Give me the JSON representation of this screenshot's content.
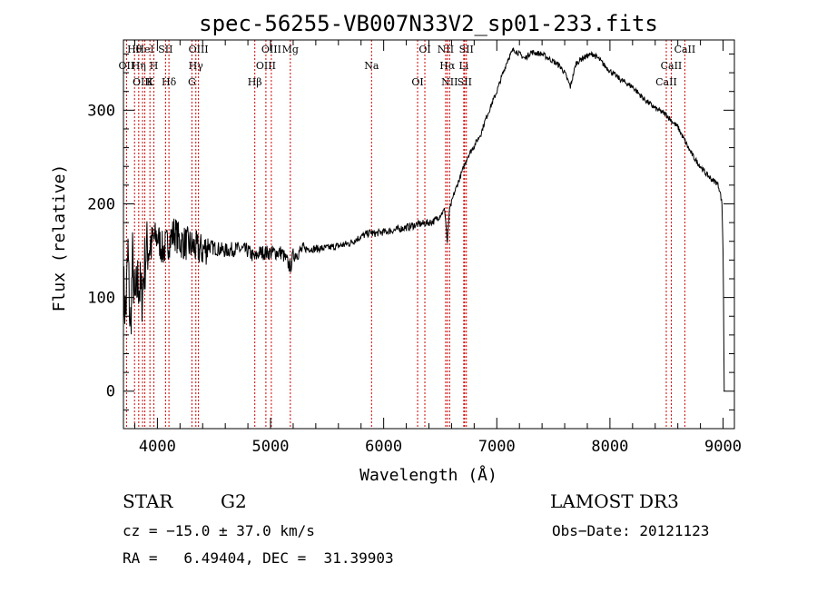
{
  "chart_data": {
    "type": "line",
    "title": "spec-56255-VB007N33V2_sp01-233.fits",
    "xlabel": "Wavelength (Å)",
    "ylabel": "Flux (relative)",
    "xlim": [
      3700,
      9100
    ],
    "ylim": [
      -40,
      375
    ],
    "xticks": [
      4000,
      5000,
      6000,
      7000,
      8000,
      9000
    ],
    "yticks": [
      0,
      100,
      200,
      300
    ],
    "grid": false,
    "series": [
      {
        "name": "flux",
        "x": [
          3700,
          3720,
          3740,
          3760,
          3780,
          3800,
          3830,
          3860,
          3900,
          3950,
          4000,
          4050,
          4100,
          4150,
          4200,
          4250,
          4300,
          4350,
          4400,
          4450,
          4500,
          4600,
          4700,
          4800,
          4861,
          4900,
          5000,
          5100,
          5175,
          5200,
          5300,
          5400,
          5500,
          5600,
          5700,
          5800,
          5893,
          5900,
          6000,
          6100,
          6200,
          6300,
          6400,
          6450,
          6500,
          6540,
          6563,
          6580,
          6620,
          6680,
          6740,
          6800,
          6860,
          6900,
          6950,
          7000,
          7050,
          7100,
          7150,
          7200,
          7250,
          7300,
          7400,
          7500,
          7550,
          7600,
          7650,
          7700,
          7750,
          7800,
          7850,
          7900,
          7950,
          8000,
          8100,
          8200,
          8300,
          8400,
          8500,
          8550,
          8600,
          8650,
          8700,
          8750,
          8800,
          8850,
          8900,
          8950,
          8970,
          8990,
          9000,
          9010
        ],
        "y": [
          110,
          80,
          150,
          60,
          140,
          90,
          120,
          100,
          150,
          160,
          165,
          150,
          160,
          170,
          160,
          158,
          155,
          152,
          150,
          155,
          153,
          150,
          152,
          150,
          142,
          148,
          148,
          148,
          132,
          145,
          152,
          152,
          153,
          155,
          158,
          165,
          170,
          168,
          170,
          172,
          175,
          178,
          180,
          182,
          188,
          194,
          158,
          192,
          210,
          230,
          250,
          262,
          275,
          290,
          305,
          320,
          338,
          355,
          365,
          360,
          355,
          362,
          360,
          352,
          348,
          340,
          325,
          350,
          355,
          358,
          360,
          355,
          348,
          342,
          332,
          325,
          312,
          302,
          295,
          288,
          282,
          270,
          258,
          248,
          240,
          232,
          226,
          222,
          215,
          200,
          150,
          0
        ]
      }
    ],
    "line_annotations": [
      {
        "label": "Hθ",
        "wavelength": 3798
      },
      {
        "label": "OII",
        "wavelength": 3727
      },
      {
        "label": "OIII",
        "wavelength": 3869
      },
      {
        "label": "HeI",
        "wavelength": 3889
      },
      {
        "label": "Hη",
        "wavelength": 3835
      },
      {
        "label": "K",
        "wavelength": 3934
      },
      {
        "label": "SII",
        "wavelength": 4072
      },
      {
        "label": "H",
        "wavelength": 3969
      },
      {
        "label": "Hδ",
        "wavelength": 4102
      },
      {
        "label": "OIII",
        "wavelength": 4363
      },
      {
        "label": "Hγ",
        "wavelength": 4340
      },
      {
        "label": "G",
        "wavelength": 4305
      },
      {
        "label": "OIII",
        "wavelength": 5007
      },
      {
        "label": "OIII",
        "wavelength": 4959
      },
      {
        "label": "Hβ",
        "wavelength": 4861
      },
      {
        "label": "Mg",
        "wavelength": 5175
      },
      {
        "label": "Na",
        "wavelength": 5893
      },
      {
        "label": "OI",
        "wavelength": 6300
      },
      {
        "label": "OI",
        "wavelength": 6364
      },
      {
        "label": "Hα",
        "wavelength": 6563
      },
      {
        "label": "SII",
        "wavelength": 6716
      },
      {
        "label": "NII",
        "wavelength": 6548
      },
      {
        "label": "Li",
        "wavelength": 6708
      },
      {
        "label": "NII",
        "wavelength": 6583
      },
      {
        "label": "SII",
        "wavelength": 6731
      },
      {
        "label": "CaII",
        "wavelength": 8542
      },
      {
        "label": "CaII",
        "wavelength": 8498
      },
      {
        "label": "CaII",
        "wavelength": 8662
      }
    ]
  },
  "info": {
    "class_label": "STAR",
    "subclass": "G2",
    "survey": "LAMOST DR3",
    "redshift_text": "cz = −15.0 ± 37.0 km/s",
    "obs_date": "Obs−Date: 20121123",
    "coords": "RA =   6.49404, DEC =  31.39903"
  },
  "colors": {
    "line_marker": "#d40000",
    "spectrum": "#000000",
    "axes": "#000000"
  }
}
